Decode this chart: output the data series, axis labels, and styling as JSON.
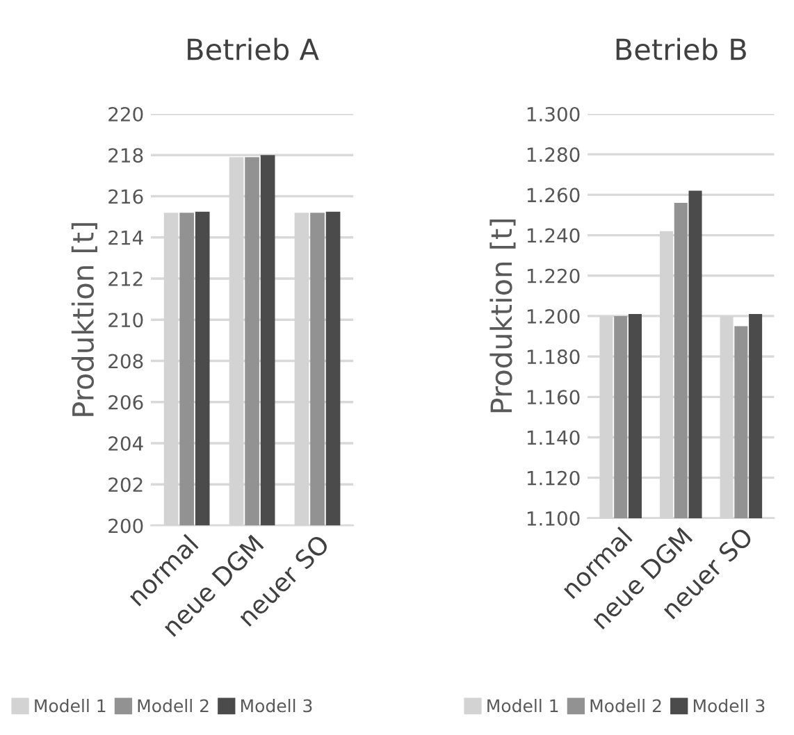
{
  "chart_data": [
    {
      "type": "bar",
      "title": "Betrieb A",
      "ylabel": "Produktion [t]",
      "categories": [
        "normal",
        "neue DGM",
        "neuer SO"
      ],
      "series": [
        {
          "name": "Modell 1",
          "color": "#d3d3d3",
          "values": [
            215.2,
            217.9,
            215.2
          ]
        },
        {
          "name": "Modell 2",
          "color": "#929292",
          "values": [
            215.2,
            217.9,
            215.2
          ]
        },
        {
          "name": "Modell 3",
          "color": "#4b4b4b",
          "values": [
            215.25,
            218.0,
            215.25
          ]
        }
      ],
      "ylim": [
        200,
        220
      ],
      "yticks": [
        200,
        202,
        204,
        206,
        208,
        210,
        212,
        214,
        216,
        218,
        220
      ],
      "grid": "y",
      "legend": "bottom"
    },
    {
      "type": "bar",
      "title": "Betrieb B",
      "ylabel": "Produktion [t]",
      "categories": [
        "normal",
        "neue DGM",
        "neuer SO"
      ],
      "series": [
        {
          "name": "Modell 1",
          "color": "#d3d3d3",
          "values": [
            1200,
            1242,
            1200
          ]
        },
        {
          "name": "Modell 2",
          "color": "#929292",
          "values": [
            1200,
            1256,
            1195
          ]
        },
        {
          "name": "Modell 3",
          "color": "#4b4b4b",
          "values": [
            1201,
            1262,
            1201
          ]
        }
      ],
      "ylim": [
        1100,
        1300
      ],
      "yticks": [
        {
          "value": 1100,
          "label": "1.100"
        },
        {
          "value": 1120,
          "label": "1.120"
        },
        {
          "value": 1140,
          "label": "1.140"
        },
        {
          "value": 1160,
          "label": "1.160"
        },
        {
          "value": 1180,
          "label": "1.180"
        },
        {
          "value": 1200,
          "label": "1.200"
        },
        {
          "value": 1220,
          "label": "1.220"
        },
        {
          "value": 1240,
          "label": "1.240"
        },
        {
          "value": 1260,
          "label": "1.260"
        },
        {
          "value": 1280,
          "label": "1.280"
        },
        {
          "value": 1300,
          "label": "1.300"
        }
      ],
      "grid": "y",
      "legend": "bottom"
    }
  ]
}
